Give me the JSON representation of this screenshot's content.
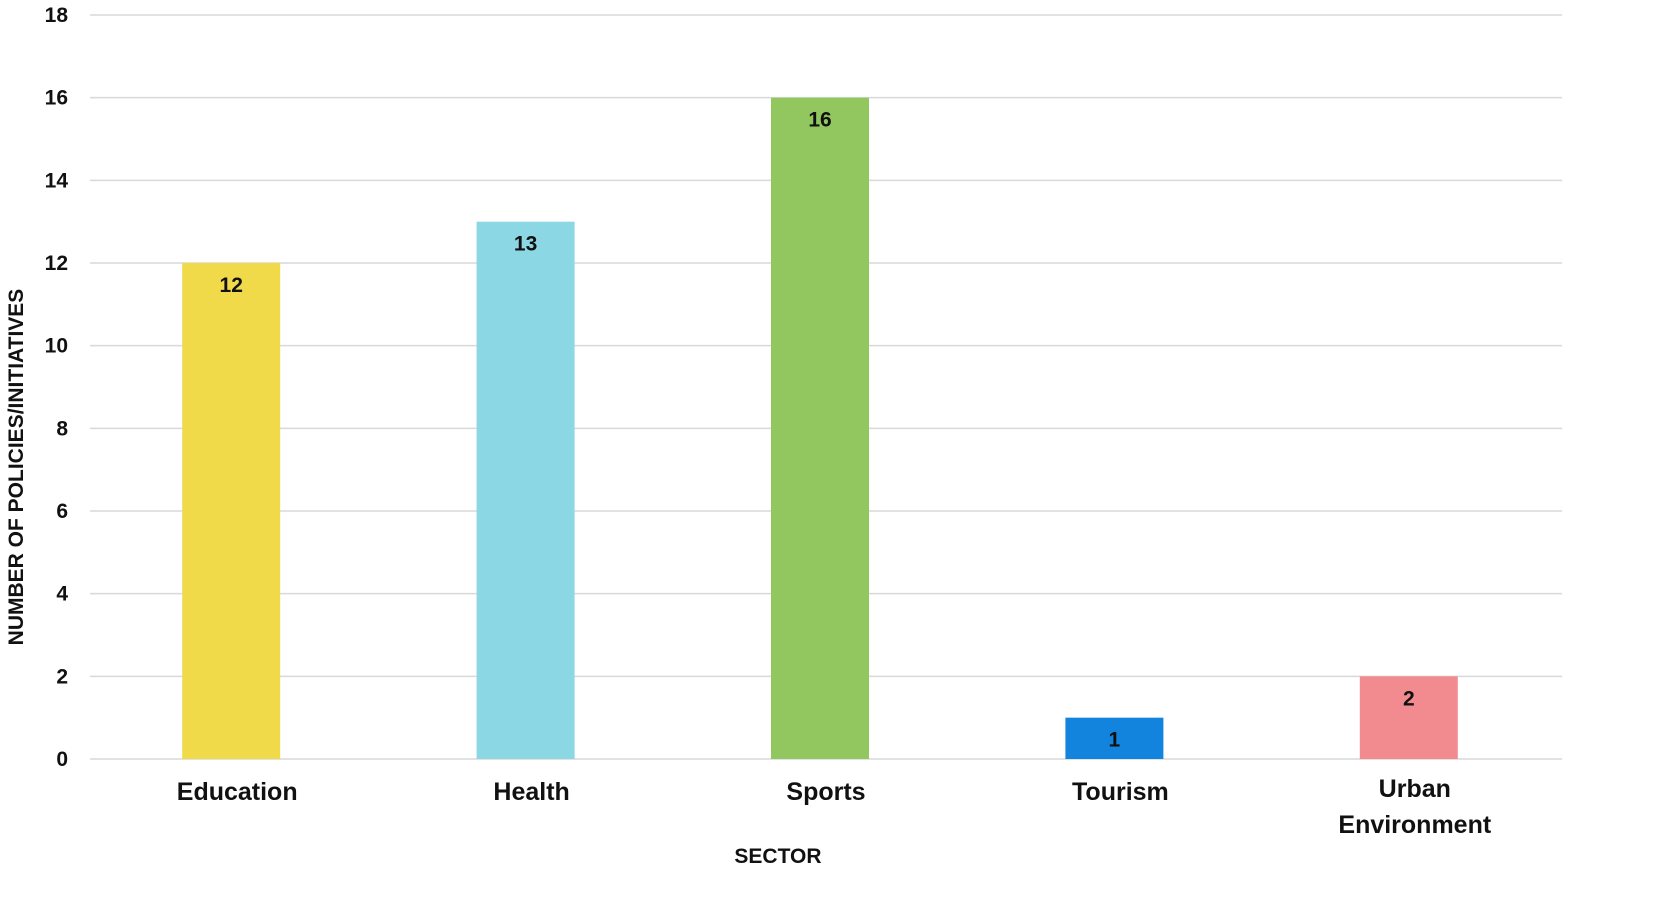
{
  "chart_data": {
    "type": "bar",
    "title": "",
    "xlabel": "SECTOR",
    "ylabel": "NUMBER OF POLICIES/INITIATIVES",
    "ylim": [
      0,
      18
    ],
    "yticks": [
      0,
      2,
      4,
      6,
      8,
      10,
      12,
      14,
      16,
      18
    ],
    "grid": true,
    "legend": "none",
    "categories": [
      [
        "Education"
      ],
      [
        "Health"
      ],
      [
        "Sports"
      ],
      [
        "Tourism"
      ],
      [
        "Urban",
        "Environment"
      ]
    ],
    "values": [
      12,
      13,
      16,
      1,
      2
    ],
    "data_labels": [
      "12",
      "13",
      "16",
      "1",
      "2"
    ],
    "colors": [
      "#f0da4a",
      "#8bd7e3",
      "#92c65e",
      "#1384dd",
      "#f28b8f"
    ]
  }
}
